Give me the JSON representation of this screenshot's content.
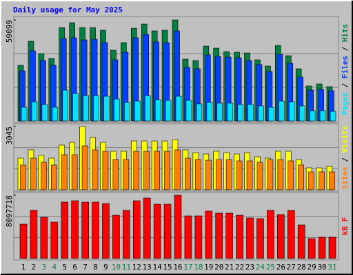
{
  "chart_data": {
    "type": "bar",
    "title": "Daily usage for May 2025",
    "categories": [
      "1",
      "2",
      "3",
      "4",
      "5",
      "6",
      "7",
      "8",
      "9",
      "10",
      "11",
      "12",
      "13",
      "14",
      "15",
      "16",
      "17",
      "18",
      "19",
      "20",
      "21",
      "22",
      "23",
      "24",
      "25",
      "26",
      "27",
      "28",
      "29",
      "30",
      "31"
    ],
    "category_colors": [
      "#000000",
      "#000000",
      "#008040",
      "#008040",
      "#000000",
      "#000000",
      "#000000",
      "#000000",
      "#000000",
      "#008040",
      "#008040",
      "#000000",
      "#000000",
      "#000000",
      "#000000",
      "#000000",
      "#008040",
      "#008040",
      "#000000",
      "#000000",
      "#000000",
      "#000000",
      "#000000",
      "#008040",
      "#008040",
      "#000000",
      "#000000",
      "#000000",
      "#000000",
      "#000000",
      "#008040"
    ],
    "legend_separator": " / ",
    "panels": [
      {
        "ylim": [
          0,
          59099
        ],
        "yticks": [
          59099
        ],
        "grid": true,
        "series": [
          {
            "name": "Hits",
            "color": "#008040",
            "values": [
              32562,
              46632,
              39396,
              36582,
              54672,
              57486,
              54672,
              54672,
              53064,
              41406,
              45828,
              54270,
              56682,
              52662,
              53064,
              59099,
              36180,
              35376,
              43818,
              42612,
              40602,
              40200,
              39798,
              35778,
              32160,
              44220,
              38190,
              30552,
              20502,
              21708,
              20100
            ]
          },
          {
            "name": "Files",
            "color": "#0040ff",
            "values": [
              29346,
              41004,
              35376,
              32562,
              48240,
              48642,
              47436,
              47838,
              45828,
              35778,
              40200,
              48642,
              50652,
              46230,
              45828,
              52662,
              31356,
              30552,
              38592,
              37788,
              37386,
              36984,
              35376,
              32964,
              28944,
              38994,
              33768,
              25728,
              18090,
              18492,
              17688
            ]
          },
          {
            "name": "Pages",
            "color": "#00e0ff",
            "values": [
              8040,
              11256,
              9648,
              8040,
              18090,
              16080,
              14874,
              14874,
              14472,
              12864,
              10854,
              11658,
              14874,
              12462,
              12060,
              14472,
              12060,
              10050,
              10854,
              10452,
              10452,
              9648,
              9648,
              8844,
              8040,
              11658,
              11256,
              8844,
              6030,
              6030,
              5628
            ]
          }
        ]
      },
      {
        "ylim": [
          0,
          3045
        ],
        "yticks": [
          3045
        ],
        "grid": true,
        "series": [
          {
            "name": "Visits",
            "color": "#ffff00",
            "values": [
              1523,
              1920,
              1655,
              1523,
              2152,
              2284,
              3045,
              2516,
              2284,
              1854,
              1854,
              2350,
              2350,
              2350,
              2350,
              2416,
              1920,
              1787,
              1721,
              1854,
              1787,
              1721,
              1787,
              1589,
              1523,
              1854,
              1854,
              1456,
              1059,
              1059,
              1125
            ]
          },
          {
            "name": "Sites",
            "color": "#ff8000",
            "values": [
              1192,
              1523,
              1324,
              1192,
              1688,
              1688,
              2118,
              1920,
              1854,
              1456,
              1456,
              1854,
              1854,
              1854,
              1854,
              1920,
              1523,
              1456,
              1423,
              1456,
              1456,
              1390,
              1390,
              1324,
              1456,
              1456,
              1390,
              1192,
              861,
              861,
              861
            ]
          }
        ]
      },
      {
        "ylim": [
          0,
          8097718
        ],
        "yticks": [
          8097718
        ],
        "grid": true,
        "series": [
          {
            "name": "kB F",
            "color": "#ff0000",
            "values": [
              4400950,
              6161330,
              5281140,
              4665007,
              7217558,
              7393596,
              7217558,
              7217558,
              7041520,
              5545197,
              6161330,
              7393596,
              7745672,
              6953501,
              6953501,
              8097718,
              5457178,
              5457178,
              6073311,
              5809254,
              5809254,
              5545197,
              5193121,
              5105102,
              6161330,
              5633216,
              6161330,
              4312931,
              2552551,
              2728589,
              2728589
            ]
          }
        ]
      }
    ]
  }
}
